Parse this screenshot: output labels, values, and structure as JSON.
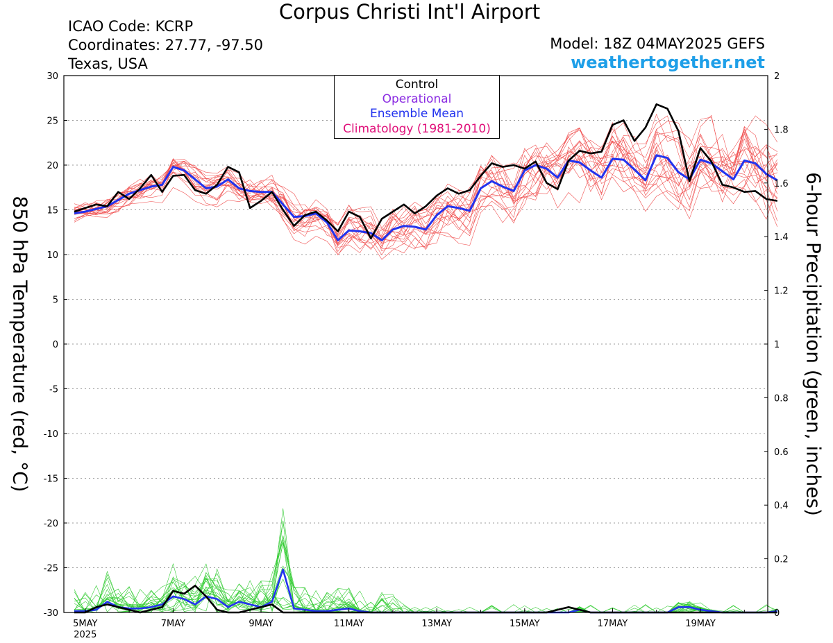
{
  "header": {
    "title": "Corpus Christi Int'l Airport",
    "icao": "ICAO Code: KCRP",
    "coordinates": "Coordinates: 27.77, -97.50",
    "region": "Texas, USA",
    "model": "Model: 18Z 04MAY2025 GEFS",
    "website": "weathertogether.net"
  },
  "legend": {
    "control": "Control",
    "operational": "Operational",
    "ensemble_mean": "Ensemble Mean",
    "climatology": "Climatology (1981-2010)"
  },
  "colors": {
    "control": "#000000",
    "operational": "#8a2be2",
    "ensemble_mean": "#2233ee",
    "climatology": "#e0107a",
    "members_temp": "#f05050",
    "members_precip": "#33cc33",
    "website": "#1e9fe8"
  },
  "chart_data": {
    "type": "line",
    "xlabel": "",
    "ylabel_left": "850 hPa Temperature (red, °C)",
    "ylabel_right": "6-hour Precipitation (green, inches)",
    "y_left_range": [
      -30,
      30
    ],
    "y_left_ticks": [
      30,
      25,
      20,
      15,
      10,
      5,
      0,
      -5,
      -10,
      -15,
      -20,
      -25,
      -30
    ],
    "y_right_range": [
      0,
      2
    ],
    "y_right_ticks": [
      "2",
      "1.8",
      "1.6",
      "1.4",
      "1.2",
      "1",
      "0.8",
      "0.6",
      "0.4",
      "0.2",
      "0"
    ],
    "x_start": "2025-05-04 18Z",
    "x_step_hours": 6,
    "x_ticks": [
      {
        "label": "5MAY",
        "sub": "2025",
        "value": "2025-05-05"
      },
      {
        "label": "7MAY",
        "value": "2025-05-07"
      },
      {
        "label": "9MAY",
        "value": "2025-05-09"
      },
      {
        "label": "11MAY",
        "value": "2025-05-11"
      },
      {
        "label": "13MAY",
        "value": "2025-05-13"
      },
      {
        "label": "15MAY",
        "value": "2025-05-15"
      },
      {
        "label": "17MAY",
        "value": "2025-05-17"
      },
      {
        "label": "19MAY",
        "value": "2025-05-19"
      }
    ],
    "grid": true,
    "series_temp_control": [
      14.8,
      15.2,
      15.6,
      15.4,
      17.0,
      16.2,
      17.4,
      18.9,
      17.0,
      18.8,
      18.9,
      17.2,
      16.8,
      17.8,
      19.8,
      19.2,
      15.2,
      16.0,
      17.0,
      15.0,
      13.2,
      14.4,
      14.8,
      13.8,
      12.6,
      14.8,
      14.2,
      11.8,
      14.0,
      14.8,
      15.6,
      14.6,
      15.4,
      16.6,
      17.4,
      16.8,
      17.2,
      18.8,
      20.2,
      19.8,
      20.0,
      19.6,
      20.4,
      18.0,
      17.3,
      20.5,
      21.6,
      21.3,
      21.5,
      24.5,
      25.0,
      22.7,
      24.2,
      26.8,
      26.3,
      23.8,
      18.2,
      21.9,
      20.4,
      17.8,
      17.5,
      17.0,
      17.1,
      16.2,
      16.0
    ],
    "series_temp_mean": [
      14.6,
      14.8,
      15.1,
      15.4,
      16.1,
      16.8,
      17.2,
      17.6,
      17.8,
      19.8,
      19.4,
      18.4,
      17.4,
      17.6,
      18.4,
      17.4,
      17.1,
      17.0,
      17.0,
      15.6,
      14.2,
      14.3,
      14.6,
      13.6,
      11.6,
      12.7,
      12.6,
      12.4,
      11.6,
      12.8,
      13.2,
      13.1,
      12.8,
      14.4,
      15.4,
      15.2,
      14.9,
      17.4,
      18.2,
      17.6,
      17.1,
      19.4,
      20.0,
      19.6,
      18.6,
      20.5,
      20.3,
      19.4,
      18.6,
      20.7,
      20.6,
      19.5,
      18.3,
      21.1,
      20.8,
      19.2,
      18.4,
      20.6,
      20.2,
      19.3,
      18.4,
      20.5,
      20.2,
      19.0,
      18.3
    ],
    "series_precip_control": [
      0,
      0,
      0.02,
      0.03,
      0.02,
      0.01,
      0,
      0.01,
      0.02,
      0.08,
      0.07,
      0.1,
      0.06,
      0.01,
      0,
      0,
      0.01,
      0.02,
      0.03,
      0,
      0,
      0,
      0,
      0,
      0,
      0,
      0,
      0,
      0,
      0,
      0,
      0,
      0,
      0,
      0,
      0,
      0,
      0,
      0,
      0,
      0,
      0,
      0,
      0,
      0.01,
      0.02,
      0.01,
      0,
      0,
      0,
      0,
      0,
      0,
      0,
      0,
      0,
      0,
      0,
      0,
      0,
      0,
      0,
      0,
      0,
      0
    ],
    "series_precip_mean": [
      0.005,
      0.005,
      0.01,
      0.04,
      0.02,
      0.015,
      0.015,
      0.02,
      0.03,
      0.06,
      0.05,
      0.03,
      0.06,
      0.05,
      0.02,
      0.04,
      0.03,
      0.02,
      0.04,
      0.16,
      0.015,
      0.01,
      0.005,
      0.005,
      0.01,
      0.015,
      0.005,
      0,
      0,
      0,
      0,
      0,
      0,
      0,
      0,
      0,
      0,
      0,
      0,
      0,
      0,
      0,
      0,
      0,
      0,
      0,
      0.01,
      0,
      0,
      0,
      0,
      0,
      0,
      0,
      0,
      0.02,
      0.02,
      0.01,
      0.005,
      0,
      0,
      0,
      0,
      0,
      0.005
    ]
  }
}
